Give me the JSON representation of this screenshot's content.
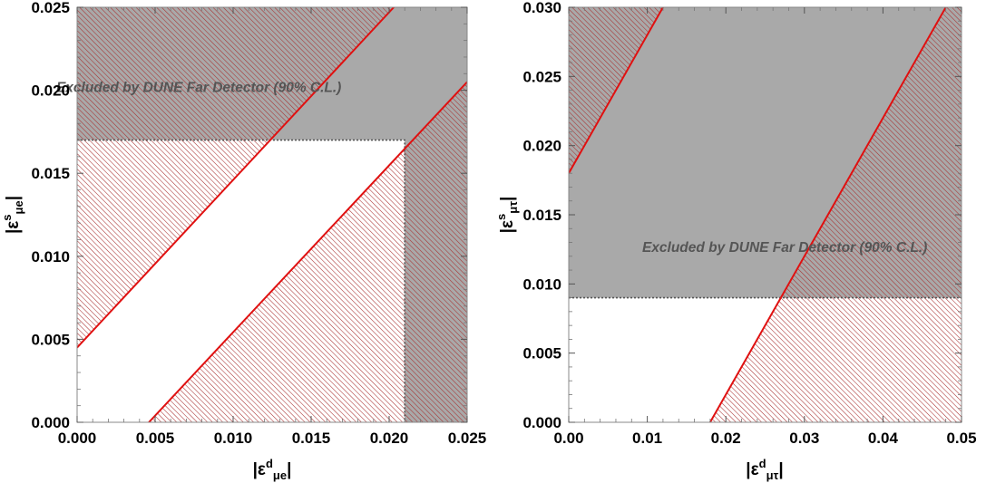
{
  "colors": {
    "excluded_fill": "#a9a9a9",
    "hatch": "#a83030",
    "line": "#e01010",
    "boundary": "#555555"
  },
  "chart_data": [
    {
      "type": "area",
      "title": "",
      "xlabel": "|ε^d_μe|",
      "ylabel": "|ε^s_μe|",
      "xlabel_parts": {
        "open": "|ε",
        "sup": "d",
        "sub": "μe",
        "close": "|"
      },
      "ylabel_parts": {
        "open": "|ε",
        "sup": "s",
        "sub": "μe",
        "close": "|"
      },
      "xlim": [
        0,
        0.025
      ],
      "ylim": [
        0,
        0.025
      ],
      "x_ticks": [
        "0.000",
        "0.005",
        "0.010",
        "0.015",
        "0.020",
        "0.025"
      ],
      "y_ticks": [
        "0.000",
        "0.005",
        "0.010",
        "0.015",
        "0.020",
        "0.025"
      ],
      "excluded_region": {
        "x_min": 0.021,
        "y_min": 0.017
      },
      "annotation": "Excluded by DUNE Far Detector (90% C.L.)",
      "annotation_at": {
        "x": 0.0078,
        "y": 0.0199
      },
      "red_lines": [
        {
          "x": [
            0.0,
            0.0203
          ],
          "y": [
            0.0045,
            0.025
          ]
        },
        {
          "x": [
            0.0046,
            0.025
          ],
          "y": [
            0.0,
            0.0205
          ]
        }
      ],
      "hatched_bands": [
        {
          "vertices": [
            [
              0.0,
              0.0045
            ],
            [
              0.0203,
              0.025
            ],
            [
              0.0,
              0.025
            ]
          ]
        },
        {
          "vertices": [
            [
              0.0046,
              0.0
            ],
            [
              0.025,
              0.0
            ],
            [
              0.025,
              0.0205
            ]
          ]
        }
      ]
    },
    {
      "type": "area",
      "title": "",
      "xlabel": "|ε^d_μτ|",
      "ylabel": "|ε^s_μτ|",
      "xlabel_parts": {
        "open": "|ε",
        "sup": "d",
        "sub": "μτ",
        "close": "|"
      },
      "ylabel_parts": {
        "open": "|ε",
        "sup": "s",
        "sub": "μτ",
        "close": "|"
      },
      "xlim": [
        0,
        0.05
      ],
      "ylim": [
        0,
        0.03
      ],
      "x_ticks": [
        "0.00",
        "0.01",
        "0.02",
        "0.03",
        "0.04",
        "0.05"
      ],
      "y_ticks": [
        "0.000",
        "0.005",
        "0.010",
        "0.015",
        "0.020",
        "0.025",
        "0.030"
      ],
      "excluded_region": {
        "y_min": 0.009
      },
      "annotation": "Excluded by DUNE Far Detector (90% C.L.)",
      "annotation_at": {
        "x": 0.0275,
        "y": 0.0123
      },
      "red_lines": [
        {
          "x": [
            0.0,
            0.012
          ],
          "y": [
            0.018,
            0.03
          ]
        },
        {
          "x": [
            0.018,
            0.0485
          ],
          "y": [
            0.0,
            0.0305
          ]
        }
      ],
      "hatched_bands": [
        {
          "vertices": [
            [
              0.0,
              0.018
            ],
            [
              0.012,
              0.03
            ],
            [
              0.0,
              0.03
            ]
          ]
        },
        {
          "vertices": [
            [
              0.018,
              0.0
            ],
            [
              0.05,
              0.0
            ],
            [
              0.05,
              0.032
            ]
          ]
        }
      ]
    }
  ]
}
